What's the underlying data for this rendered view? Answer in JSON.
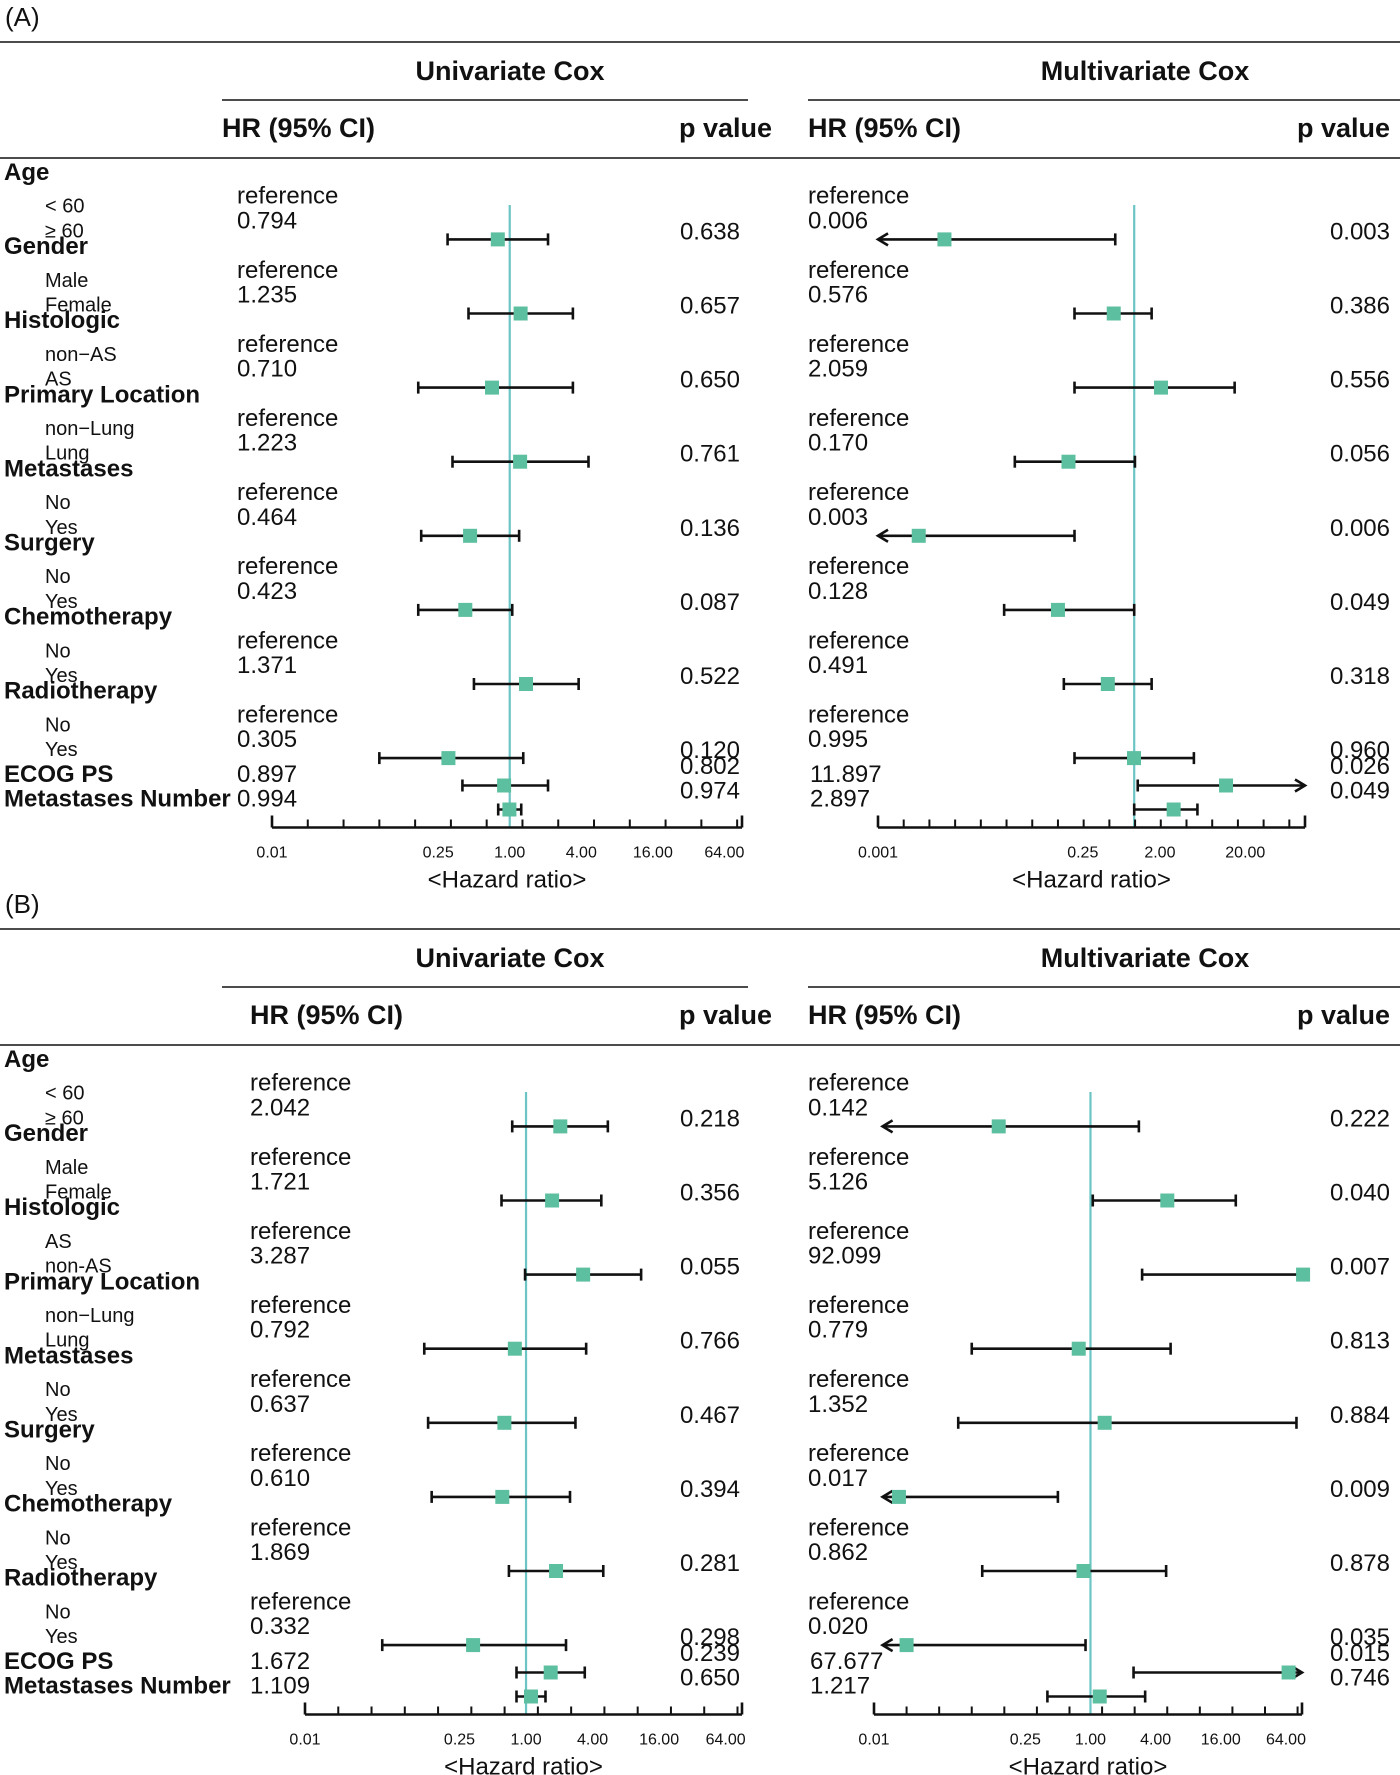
{
  "x_axis_title": "<Hazard ratio>",
  "header_labels": {
    "univariate": "Univariate Cox",
    "multivariate": "Multivariate Cox",
    "hr_col": "HR (95% CI)",
    "p_col": "p value"
  },
  "colors": {
    "marker": "#5cbf9f",
    "reference_line": "#6cc4c4",
    "text": "#111111"
  },
  "chart_data": [
    {
      "type": "forest",
      "panel_label": "(A)",
      "rows": [
        {
          "label": "Age",
          "kind": "group"
        },
        {
          "label": "< 60",
          "kind": "level",
          "uni_hr": "reference",
          "multi_hr": "reference"
        },
        {
          "label": "≥ 60",
          "kind": "level",
          "uni_hr": "0.794",
          "uni_p": "0.638",
          "multi_hr": "0.006",
          "multi_p": "0.003"
        },
        {
          "label": "Gender",
          "kind": "group"
        },
        {
          "label": "Male",
          "kind": "level",
          "uni_hr": "reference",
          "multi_hr": "reference"
        },
        {
          "label": "Female",
          "kind": "level",
          "uni_hr": "1.235",
          "uni_p": "0.657",
          "multi_hr": "0.576",
          "multi_p": "0.386"
        },
        {
          "label": "Histologic",
          "kind": "group"
        },
        {
          "label": "non−AS",
          "kind": "level",
          "uni_hr": "reference",
          "multi_hr": "reference"
        },
        {
          "label": "AS",
          "kind": "level",
          "uni_hr": "0.710",
          "uni_p": "0.650",
          "multi_hr": "2.059",
          "multi_p": "0.556"
        },
        {
          "label": "Primary Location",
          "kind": "group"
        },
        {
          "label": "non−Lung",
          "kind": "level",
          "uni_hr": "reference",
          "multi_hr": "reference"
        },
        {
          "label": "Lung",
          "kind": "level",
          "uni_hr": "1.223",
          "uni_p": "0.761",
          "multi_hr": "0.170",
          "multi_p": "0.056"
        },
        {
          "label": "Metastases",
          "kind": "group"
        },
        {
          "label": "No",
          "kind": "level",
          "uni_hr": "reference",
          "multi_hr": "reference"
        },
        {
          "label": "Yes",
          "kind": "level",
          "uni_hr": "0.464",
          "uni_p": "0.136",
          "multi_hr": "0.003",
          "multi_p": "0.006"
        },
        {
          "label": "Surgery",
          "kind": "group"
        },
        {
          "label": "No",
          "kind": "level",
          "uni_hr": "reference",
          "multi_hr": "reference"
        },
        {
          "label": "Yes",
          "kind": "level",
          "uni_hr": "0.423",
          "uni_p": "0.087",
          "multi_hr": "0.128",
          "multi_p": "0.049"
        },
        {
          "label": "Chemotherapy",
          "kind": "group"
        },
        {
          "label": "No",
          "kind": "level",
          "uni_hr": "reference",
          "multi_hr": "reference"
        },
        {
          "label": "Yes",
          "kind": "level",
          "uni_hr": "1.371",
          "uni_p": "0.522",
          "multi_hr": "0.491",
          "multi_p": "0.318"
        },
        {
          "label": "Radiotherapy",
          "kind": "group"
        },
        {
          "label": "No",
          "kind": "level",
          "uni_hr": "reference",
          "multi_hr": "reference"
        },
        {
          "label": "Yes",
          "kind": "level",
          "uni_hr": "0.305",
          "uni_p": "0.120",
          "multi_hr": "0.995",
          "multi_p": "0.960"
        },
        {
          "label": "ECOG PS",
          "kind": "single",
          "uni_hr": "0.897",
          "uni_p": "0.802",
          "multi_hr": "11.897",
          "multi_p": "0.026"
        },
        {
          "label": "Metastases Number",
          "kind": "single",
          "uni_hr": "0.994",
          "uni_p": "0.974",
          "multi_hr": "2.897",
          "multi_p": "0.049"
        }
      ],
      "univariate": {
        "ticks": [
          0.01,
          0.25,
          1.0,
          4.0,
          16.0,
          64.0
        ],
        "tick_labels": [
          "0.01",
          "0.25",
          "1.00",
          "4.00",
          "16.00",
          "64.00"
        ],
        "xlim": [
          0.01,
          90
        ],
        "estimates": [
          {
            "hr": 0.794,
            "lo": 0.3,
            "hi": 2.1
          },
          {
            "hr": 1.235,
            "lo": 0.45,
            "hi": 3.4
          },
          {
            "hr": 0.71,
            "lo": 0.17,
            "hi": 3.4
          },
          {
            "hr": 1.223,
            "lo": 0.33,
            "hi": 4.6
          },
          {
            "hr": 0.464,
            "lo": 0.18,
            "hi": 1.2
          },
          {
            "hr": 0.423,
            "lo": 0.17,
            "hi": 1.05
          },
          {
            "hr": 1.371,
            "lo": 0.5,
            "hi": 3.8
          },
          {
            "hr": 0.305,
            "lo": 0.08,
            "hi": 1.3
          },
          {
            "hr": 0.897,
            "lo": 0.4,
            "hi": 2.1
          },
          {
            "hr": 0.994,
            "lo": 0.8,
            "hi": 1.25
          }
        ]
      },
      "multivariate": {
        "ticks": [
          0.001,
          0.25,
          2.0,
          20.0
        ],
        "tick_labels": [
          "0.001",
          "0.25",
          "2.00",
          "20.00"
        ],
        "xlim": [
          0.001,
          100
        ],
        "estimates": [
          {
            "hr": 0.006,
            "lo": 0.001,
            "hi": 0.6,
            "arrow_left": true
          },
          {
            "hr": 0.576,
            "lo": 0.2,
            "hi": 1.6
          },
          {
            "hr": 2.059,
            "lo": 0.2,
            "hi": 15.0
          },
          {
            "hr": 0.17,
            "lo": 0.04,
            "hi": 1.02
          },
          {
            "hr": 0.003,
            "lo": 0.001,
            "hi": 0.2,
            "arrow_left": true
          },
          {
            "hr": 0.128,
            "lo": 0.03,
            "hi": 1.0
          },
          {
            "hr": 0.491,
            "lo": 0.15,
            "hi": 1.6
          },
          {
            "hr": 0.995,
            "lo": 0.2,
            "hi": 5.0
          },
          {
            "hr": 11.897,
            "lo": 1.1,
            "hi": 100,
            "arrow_right": true
          },
          {
            "hr": 2.897,
            "lo": 1.0,
            "hi": 5.5
          }
        ]
      }
    },
    {
      "type": "forest",
      "panel_label": "(B)",
      "rows": [
        {
          "label": "Age",
          "kind": "group"
        },
        {
          "label": "< 60",
          "kind": "level",
          "uni_hr": "reference",
          "multi_hr": "reference"
        },
        {
          "label": "≥ 60",
          "kind": "level",
          "uni_hr": "2.042",
          "uni_p": "0.218",
          "multi_hr": "0.142",
          "multi_p": "0.222"
        },
        {
          "label": "Gender",
          "kind": "group"
        },
        {
          "label": "Male",
          "kind": "level",
          "uni_hr": "reference",
          "multi_hr": "reference"
        },
        {
          "label": "Female",
          "kind": "level",
          "uni_hr": "1.721",
          "uni_p": "0.356",
          "multi_hr": "5.126",
          "multi_p": "0.040"
        },
        {
          "label": "Histologic",
          "kind": "group"
        },
        {
          "label": "AS",
          "kind": "level",
          "uni_hr": "reference",
          "multi_hr": "reference"
        },
        {
          "label": "non-AS",
          "kind": "level",
          "uni_hr": "3.287",
          "uni_p": "0.055",
          "multi_hr": "92.099",
          "multi_p": "0.007"
        },
        {
          "label": "Primary Location",
          "kind": "group"
        },
        {
          "label": "non−Lung",
          "kind": "level",
          "uni_hr": "reference",
          "multi_hr": "reference"
        },
        {
          "label": "Lung",
          "kind": "level",
          "uni_hr": "0.792",
          "uni_p": "0.766",
          "multi_hr": "0.779",
          "multi_p": "0.813"
        },
        {
          "label": "Metastases",
          "kind": "group"
        },
        {
          "label": "No",
          "kind": "level",
          "uni_hr": "reference",
          "multi_hr": "reference"
        },
        {
          "label": "Yes",
          "kind": "level",
          "uni_hr": "0.637",
          "uni_p": "0.467",
          "multi_hr": "1.352",
          "multi_p": "0.884"
        },
        {
          "label": "Surgery",
          "kind": "group"
        },
        {
          "label": "No",
          "kind": "level",
          "uni_hr": "reference",
          "multi_hr": "reference"
        },
        {
          "label": "Yes",
          "kind": "level",
          "uni_hr": "0.610",
          "uni_p": "0.394",
          "multi_hr": "0.017",
          "multi_p": "0.009"
        },
        {
          "label": "Chemotherapy",
          "kind": "group"
        },
        {
          "label": "No",
          "kind": "level",
          "uni_hr": "reference",
          "multi_hr": "reference"
        },
        {
          "label": "Yes",
          "kind": "level",
          "uni_hr": "1.869",
          "uni_p": "0.281",
          "multi_hr": "0.862",
          "multi_p": "0.878"
        },
        {
          "label": "Radiotherapy",
          "kind": "group"
        },
        {
          "label": "No",
          "kind": "level",
          "uni_hr": "reference",
          "multi_hr": "reference"
        },
        {
          "label": "Yes",
          "kind": "level",
          "uni_hr": "0.332",
          "uni_p": "0.298",
          "multi_hr": "0.020",
          "multi_p": "0.035"
        },
        {
          "label": "ECOG PS",
          "kind": "single",
          "uni_hr": "1.672",
          "uni_p": "0.239",
          "multi_hr": "67.677",
          "multi_p": "0.015"
        },
        {
          "label": "Metastases Number",
          "kind": "single",
          "uni_hr": "1.109",
          "uni_p": "0.650",
          "multi_hr": "1.217",
          "multi_p": "0.746"
        }
      ],
      "univariate": {
        "ticks": [
          0.01,
          0.25,
          1.0,
          4.0,
          16.0,
          64.0
        ],
        "tick_labels": [
          "0.01",
          "0.25",
          "1.00",
          "4.00",
          "16.00",
          "64.00"
        ],
        "xlim": [
          0.01,
          90
        ],
        "estimates": [
          {
            "hr": 2.042,
            "lo": 0.75,
            "hi": 5.5
          },
          {
            "hr": 1.721,
            "lo": 0.6,
            "hi": 4.8
          },
          {
            "hr": 3.287,
            "lo": 0.98,
            "hi": 11.0
          },
          {
            "hr": 0.792,
            "lo": 0.12,
            "hi": 3.5
          },
          {
            "hr": 0.637,
            "lo": 0.13,
            "hi": 2.8
          },
          {
            "hr": 0.61,
            "lo": 0.14,
            "hi": 2.5
          },
          {
            "hr": 1.869,
            "lo": 0.7,
            "hi": 5.0
          },
          {
            "hr": 0.332,
            "lo": 0.05,
            "hi": 2.3
          },
          {
            "hr": 1.672,
            "lo": 0.82,
            "hi": 3.4
          },
          {
            "hr": 1.109,
            "lo": 0.82,
            "hi": 1.5
          }
        ]
      },
      "multivariate": {
        "ticks": [
          0.01,
          0.25,
          1.0,
          4.0,
          16.0,
          64.0
        ],
        "tick_labels": [
          "0.01",
          "0.25",
          "1.00",
          "4.00",
          "16.00",
          "64.00"
        ],
        "xlim": [
          0.01,
          90
        ],
        "estimates": [
          {
            "hr": 0.142,
            "lo": 0.012,
            "hi": 2.8,
            "arrow_left": true
          },
          {
            "hr": 5.126,
            "lo": 1.05,
            "hi": 22.0
          },
          {
            "hr": 92.099,
            "lo": 3.0,
            "hi": 92.1
          },
          {
            "hr": 0.779,
            "lo": 0.08,
            "hi": 5.5
          },
          {
            "hr": 1.352,
            "lo": 0.06,
            "hi": 80.0
          },
          {
            "hr": 0.017,
            "lo": 0.012,
            "hi": 0.5,
            "arrow_left": true
          },
          {
            "hr": 0.862,
            "lo": 0.1,
            "hi": 5.0
          },
          {
            "hr": 0.02,
            "lo": 0.012,
            "hi": 0.9,
            "arrow_left": true
          },
          {
            "hr": 67.677,
            "lo": 2.5,
            "hi": 90,
            "arrow_right": true
          },
          {
            "hr": 1.217,
            "lo": 0.4,
            "hi": 3.2
          }
        ]
      }
    }
  ]
}
